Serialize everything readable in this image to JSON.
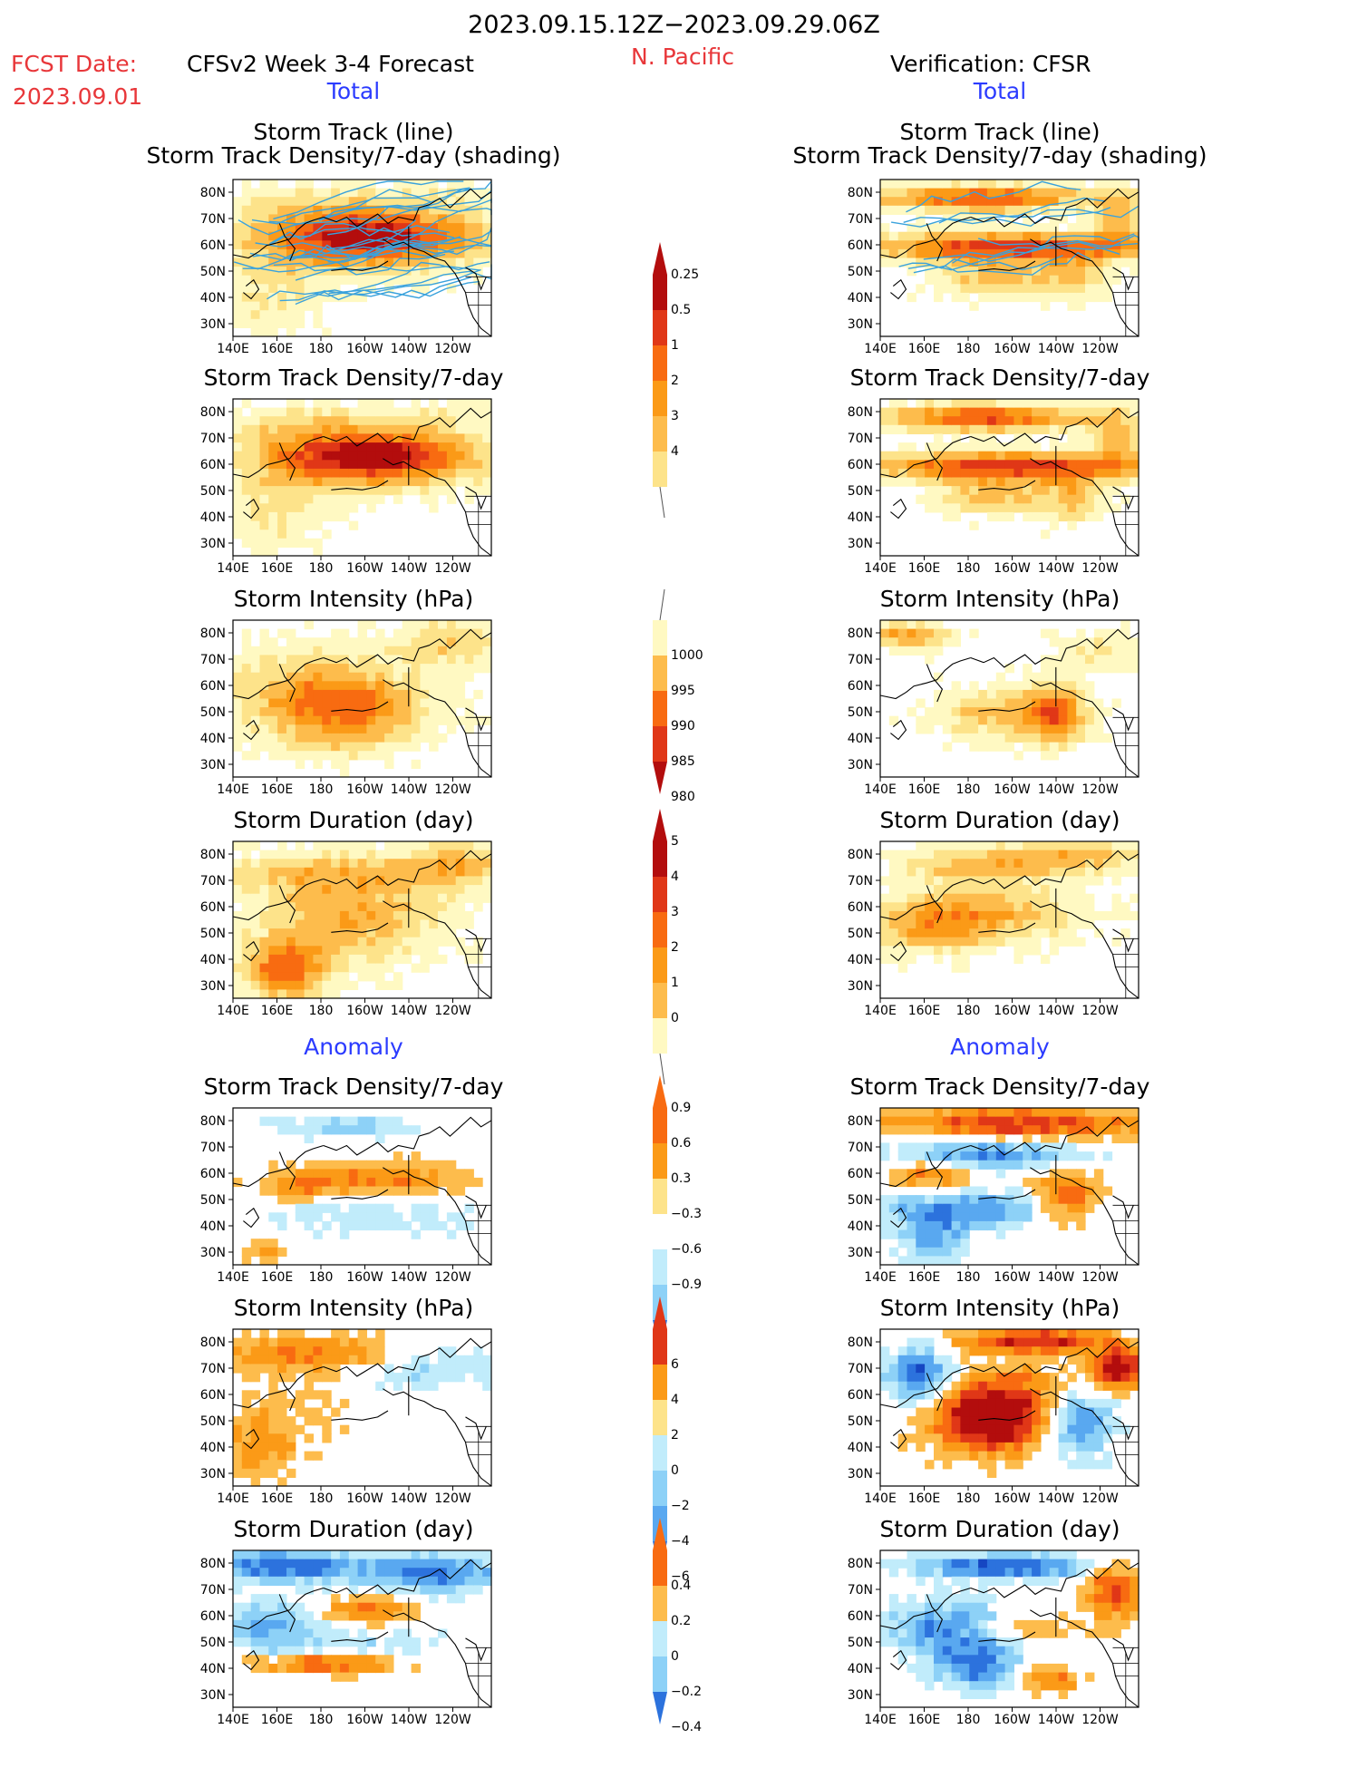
{
  "header": {
    "period": "2023.09.15.12Z−2023.09.29.06Z",
    "fcst_label": "FCST Date:",
    "fcst_date": "2023.09.01",
    "model_title": "CFSv2 Week 3-4 Forecast",
    "region": "N. Pacific",
    "verification": "Verification: CFSR"
  },
  "sections": {
    "total_left": "Total",
    "total_right": "Total",
    "anomaly_left": "Anomaly",
    "anomaly_right": "Anomaly"
  },
  "panel_titles": {
    "track_line": "Storm Track (line)",
    "track_shading": "Storm Track Density/7-day (shading)",
    "density": "Storm Track Density/7-day",
    "intensity": "Storm Intensity (hPa)",
    "duration": "Storm Duration (day)"
  },
  "axes": {
    "lat_ticks": [
      "80N",
      "70N",
      "60N",
      "50N",
      "40N",
      "30N"
    ],
    "lon_ticks": [
      "140E",
      "160E",
      "180",
      "160W",
      "140W",
      "120W"
    ]
  },
  "colors": {
    "warm": [
      "#fff9c2",
      "#fde38a",
      "#fdbc4c",
      "#fb9a17",
      "#f86b11",
      "#e03717",
      "#b30d0d"
    ],
    "cool": [
      "#c1ecfb",
      "#8dd1f7",
      "#59a8f0",
      "#2c72dd",
      "#1646c2"
    ],
    "track_line": "#3aa2dc"
  },
  "chart_data": [
    {
      "type": "heatmap",
      "panel": "forecast-total-track-density-line",
      "title": "Storm Track (line) / Storm Track Density/7-day (shading)",
      "colorbar": [
        "0.25",
        "0.5",
        "1",
        "2",
        "3",
        "4"
      ]
    },
    {
      "type": "heatmap",
      "panel": "verification-total-track-density-line",
      "title": "Storm Track (line) / Storm Track Density/7-day (shading)"
    },
    {
      "type": "heatmap",
      "panel": "forecast-total-track-density",
      "title": "Storm Track Density/7-day"
    },
    {
      "type": "heatmap",
      "panel": "verification-total-track-density",
      "title": "Storm Track Density/7-day"
    },
    {
      "type": "heatmap",
      "panel": "forecast-total-intensity",
      "title": "Storm Intensity (hPa)",
      "colorbar": [
        "1000",
        "995",
        "990",
        "985",
        "980"
      ]
    },
    {
      "type": "heatmap",
      "panel": "verification-total-intensity",
      "title": "Storm Intensity (hPa)"
    },
    {
      "type": "heatmap",
      "panel": "forecast-total-duration",
      "title": "Storm Duration (day)",
      "colorbar": [
        "5",
        "4",
        "3",
        "2",
        "1",
        "0"
      ]
    },
    {
      "type": "heatmap",
      "panel": "verification-total-duration",
      "title": "Storm Duration (day)"
    },
    {
      "type": "heatmap",
      "panel": "forecast-anomaly-track-density",
      "title": "Storm Track Density/7-day",
      "colorbar": [
        "0.9",
        "0.6",
        "0.3",
        "−0.3",
        "−0.6",
        "−0.9"
      ]
    },
    {
      "type": "heatmap",
      "panel": "verification-anomaly-track-density",
      "title": "Storm Track Density/7-day"
    },
    {
      "type": "heatmap",
      "panel": "forecast-anomaly-intensity",
      "title": "Storm Intensity (hPa)",
      "colorbar": [
        "6",
        "4",
        "2",
        "0",
        "−2",
        "−4",
        "−6"
      ]
    },
    {
      "type": "heatmap",
      "panel": "verification-anomaly-intensity",
      "title": "Storm Intensity (hPa)"
    },
    {
      "type": "heatmap",
      "panel": "forecast-anomaly-duration",
      "title": "Storm Duration (day)",
      "colorbar": [
        "0.4",
        "0.2",
        "0",
        "−0.2",
        "−0.4"
      ]
    },
    {
      "type": "heatmap",
      "panel": "verification-anomaly-duration",
      "title": "Storm Duration (day)"
    }
  ]
}
